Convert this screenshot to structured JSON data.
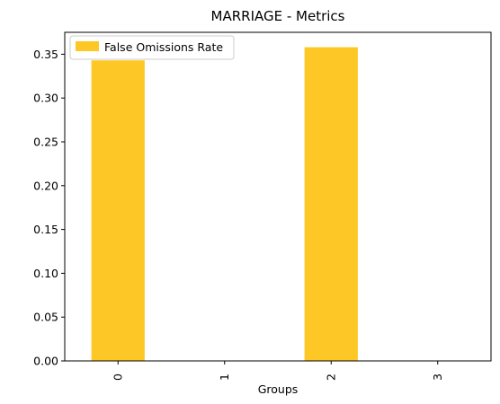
{
  "chart_data": {
    "type": "bar",
    "title": "MARRIAGE - Metrics",
    "xlabel": "Groups",
    "ylabel": "",
    "categories": [
      "0",
      "1",
      "2",
      "3"
    ],
    "series": [
      {
        "name": "False Omissions Rate",
        "values": [
          0.343,
          0.0,
          0.358,
          0.0
        ],
        "color": "#fdc826"
      }
    ],
    "ylim": [
      0,
      0.375
    ],
    "yticks": [
      "0.00",
      "0.05",
      "0.10",
      "0.15",
      "0.20",
      "0.25",
      "0.30",
      "0.35"
    ],
    "grid": false,
    "legend_position": "top-left"
  }
}
